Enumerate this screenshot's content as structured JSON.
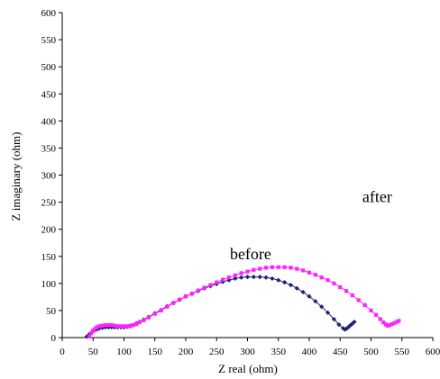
{
  "chart_data": {
    "type": "scatter",
    "title": "",
    "xlabel": "Z real (ohm)",
    "ylabel": "Z imaginary (ohm)",
    "xlim": [
      0,
      600
    ],
    "ylim": [
      0,
      600
    ],
    "xticks": [
      0,
      50,
      100,
      150,
      200,
      250,
      300,
      350,
      400,
      450,
      500,
      550,
      600
    ],
    "yticks": [
      0,
      50,
      100,
      150,
      200,
      250,
      300,
      350,
      400,
      450,
      500,
      550,
      600
    ],
    "grid": false,
    "legend": "none",
    "annotations": [
      {
        "text": "before",
        "x": 305,
        "y": 145
      },
      {
        "text": "after",
        "x": 510,
        "y": 250
      }
    ],
    "series": [
      {
        "label_text": "before",
        "color": "#1f1f7a",
        "marker": "diamond",
        "line": true,
        "x": [
          40,
          44,
          48,
          52,
          56,
          60,
          65,
          70,
          75,
          80,
          85,
          90,
          95,
          100,
          105,
          110,
          115,
          120,
          125,
          132,
          140,
          150,
          160,
          170,
          180,
          190,
          200,
          210,
          220,
          230,
          240,
          250,
          260,
          270,
          280,
          290,
          300,
          310,
          320,
          330,
          340,
          350,
          360,
          370,
          380,
          390,
          400,
          410,
          420,
          430,
          440,
          448,
          455,
          458,
          461,
          464,
          467,
          470,
          473
        ],
        "y": [
          2,
          6,
          10,
          13,
          15,
          17,
          18,
          19,
          19,
          19,
          19,
          19,
          19,
          19,
          20,
          21,
          23,
          26,
          29,
          33,
          38,
          45,
          51,
          58,
          64,
          70,
          76,
          81,
          86,
          91,
          95,
          99,
          103,
          106,
          109,
          111,
          112,
          112,
          112,
          111,
          109,
          106,
          102,
          97,
          91,
          84,
          76,
          67,
          57,
          46,
          34,
          24,
          17,
          15,
          17,
          20,
          23,
          26,
          29
        ]
      },
      {
        "label_text": "after",
        "color": "#ff22ff",
        "marker": "square",
        "line": true,
        "x": [
          44,
          47,
          50,
          53,
          56,
          60,
          65,
          70,
          75,
          80,
          85,
          90,
          95,
          100,
          105,
          110,
          115,
          120,
          125,
          132,
          140,
          150,
          160,
          170,
          180,
          190,
          200,
          210,
          220,
          230,
          240,
          250,
          260,
          270,
          280,
          290,
          300,
          310,
          320,
          330,
          340,
          350,
          360,
          370,
          380,
          390,
          400,
          410,
          420,
          430,
          440,
          450,
          460,
          470,
          480,
          490,
          500,
          508,
          515,
          520,
          524,
          527,
          530,
          534,
          538,
          542,
          545
        ],
        "y": [
          2,
          8,
          13,
          16,
          19,
          21,
          22,
          23,
          23,
          23,
          22,
          21,
          21,
          21,
          21,
          22,
          23,
          25,
          28,
          32,
          37,
          44,
          50,
          57,
          64,
          70,
          76,
          81,
          87,
          92,
          97,
          102,
          107,
          111,
          115,
          119,
          122,
          125,
          127,
          129,
          130,
          130,
          130,
          129,
          127,
          124,
          120,
          116,
          111,
          106,
          100,
          93,
          86,
          78,
          69,
          60,
          50,
          42,
          34,
          28,
          24,
          22,
          23,
          25,
          27,
          29,
          31
        ]
      }
    ]
  }
}
